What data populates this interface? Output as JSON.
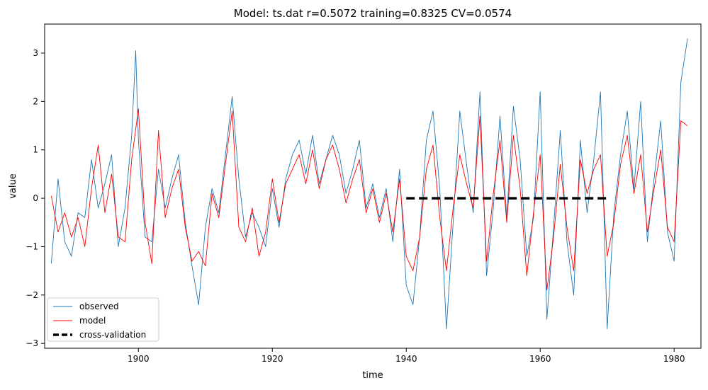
{
  "chart_data": {
    "type": "line",
    "title": "Model: ts.dat  r=0.5072  training=0.8325  CV=0.0574",
    "xlabel": "time",
    "ylabel": "value",
    "xlim": [
      1886,
      1984
    ],
    "ylim": [
      -3.1,
      3.6
    ],
    "x_ticks": [
      1900,
      1920,
      1940,
      1960,
      1980
    ],
    "y_ticks": [
      -3,
      -2,
      -1,
      0,
      1,
      2,
      3
    ],
    "legend_position": "lower-left",
    "series": [
      {
        "name": "observed",
        "color": "#1f77b4",
        "x": [
          1887,
          1888,
          1889,
          1890,
          1891,
          1892,
          1893,
          1894,
          1895,
          1896,
          1897,
          1898,
          1899,
          1899.6,
          1900,
          1901,
          1902,
          1903,
          1904,
          1905,
          1906,
          1907,
          1908,
          1909,
          1910,
          1911,
          1912,
          1913,
          1914,
          1915,
          1916,
          1917,
          1918,
          1919,
          1920,
          1921,
          1922,
          1923,
          1924,
          1925,
          1926,
          1927,
          1928,
          1929,
          1930,
          1931,
          1932,
          1933,
          1934,
          1935,
          1936,
          1937,
          1938,
          1939,
          1940,
          1941,
          1942,
          1943,
          1944,
          1945,
          1946,
          1947,
          1948,
          1949,
          1950,
          1951,
          1952,
          1953,
          1954,
          1955,
          1956,
          1957,
          1958,
          1959,
          1960,
          1961,
          1962,
          1963,
          1964,
          1965,
          1966,
          1967,
          1968,
          1969,
          1970,
          1971,
          1972,
          1973,
          1974,
          1975,
          1976,
          1977,
          1978,
          1979,
          1980,
          1981,
          1982
        ],
        "values": [
          -1.35,
          0.4,
          -0.9,
          -1.2,
          -0.3,
          -0.4,
          0.8,
          -0.2,
          0.3,
          0.9,
          -1.0,
          -0.2,
          1.3,
          3.05,
          1.2,
          -0.8,
          -0.9,
          0.6,
          -0.2,
          0.4,
          0.9,
          -0.5,
          -1.4,
          -2.2,
          -0.6,
          0.2,
          -0.3,
          0.9,
          2.1,
          0.4,
          -0.8,
          -0.3,
          -0.6,
          -1.0,
          0.2,
          -0.6,
          0.4,
          0.9,
          1.2,
          0.5,
          1.3,
          0.3,
          0.8,
          1.3,
          0.9,
          0.1,
          0.6,
          1.2,
          -0.2,
          0.3,
          -0.4,
          0.2,
          -0.9,
          0.6,
          -1.8,
          -2.2,
          -0.8,
          1.2,
          1.8,
          0.2,
          -2.7,
          -0.5,
          1.8,
          0.7,
          -0.3,
          2.2,
          -1.6,
          -0.2,
          1.7,
          -0.4,
          1.9,
          0.8,
          -1.2,
          -0.4,
          2.2,
          -2.5,
          -0.6,
          1.4,
          -0.9,
          -2.0,
          1.2,
          -0.3,
          0.8,
          2.2,
          -2.7,
          -0.3,
          0.9,
          1.8,
          0.2,
          2.0,
          -0.9,
          0.4,
          1.6,
          -0.7,
          -1.3,
          2.4,
          3.3
        ]
      },
      {
        "name": "model",
        "color": "#ff0000",
        "x": [
          1887,
          1888,
          1889,
          1890,
          1891,
          1892,
          1893,
          1894,
          1895,
          1896,
          1897,
          1898,
          1899,
          1900,
          1901,
          1902,
          1903,
          1904,
          1905,
          1906,
          1907,
          1908,
          1909,
          1910,
          1911,
          1912,
          1913,
          1914,
          1915,
          1916,
          1917,
          1918,
          1919,
          1920,
          1921,
          1922,
          1923,
          1924,
          1925,
          1926,
          1927,
          1928,
          1929,
          1930,
          1931,
          1932,
          1933,
          1934,
          1935,
          1936,
          1937,
          1938,
          1939,
          1940,
          1941,
          1942,
          1943,
          1944,
          1945,
          1946,
          1947,
          1948,
          1949,
          1950,
          1951,
          1952,
          1953,
          1954,
          1955,
          1956,
          1957,
          1958,
          1959,
          1960,
          1961,
          1962,
          1963,
          1964,
          1965,
          1966,
          1967,
          1968,
          1969,
          1970,
          1971,
          1972,
          1973,
          1974,
          1975,
          1976,
          1977,
          1978,
          1979,
          1980,
          1981,
          1982
        ],
        "values": [
          0.05,
          -0.7,
          -0.3,
          -0.8,
          -0.4,
          -1.0,
          0.2,
          1.1,
          -0.3,
          0.5,
          -0.8,
          -0.9,
          0.8,
          1.85,
          -0.5,
          -1.35,
          1.4,
          -0.4,
          0.2,
          0.6,
          -0.6,
          -1.3,
          -1.1,
          -1.4,
          0.1,
          -0.4,
          0.7,
          1.8,
          -0.6,
          -0.9,
          -0.2,
          -1.2,
          -0.7,
          0.4,
          -0.5,
          0.3,
          0.6,
          0.9,
          0.3,
          1.0,
          0.2,
          0.8,
          1.1,
          0.6,
          -0.1,
          0.4,
          0.8,
          -0.3,
          0.2,
          -0.5,
          0.1,
          -0.7,
          0.4,
          -1.2,
          -1.5,
          -0.8,
          0.6,
          1.1,
          -0.4,
          -1.5,
          -0.2,
          0.9,
          0.3,
          -0.2,
          1.7,
          -1.3,
          0.1,
          1.2,
          -0.5,
          1.3,
          0.2,
          -1.6,
          -0.3,
          0.9,
          -1.9,
          -0.8,
          0.7,
          -0.6,
          -1.5,
          0.8,
          0.1,
          0.6,
          0.9,
          -1.2,
          -0.5,
          0.7,
          1.3,
          0.1,
          0.9,
          -0.7,
          0.2,
          1.0,
          -0.6,
          -0.9,
          1.6,
          1.5
        ]
      },
      {
        "name": "cross-validation",
        "color": "#000000",
        "style": "dashed",
        "x": [
          1940,
          1970
        ],
        "values": [
          0,
          0
        ]
      }
    ]
  }
}
